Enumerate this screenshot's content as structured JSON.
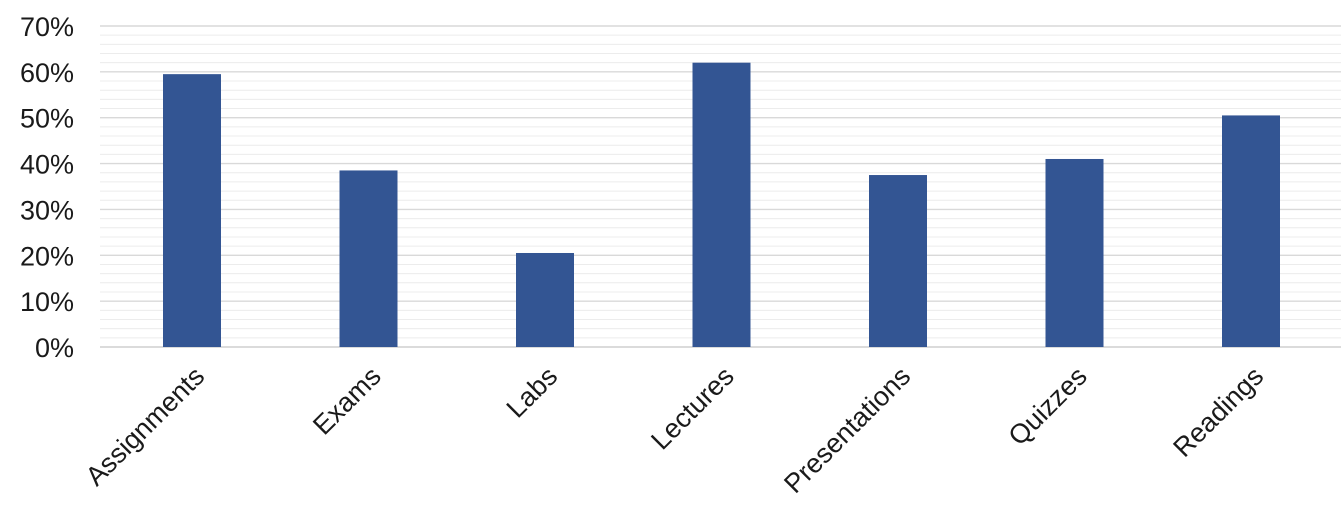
{
  "chart_data": {
    "type": "bar",
    "categories": [
      "Assignments",
      "Exams",
      "Labs",
      "Lectures",
      "Presentations",
      "Quizzes",
      "Readings"
    ],
    "series": [
      {
        "values": [
          59.5,
          38.5,
          20.5,
          62,
          37.5,
          41,
          50.5
        ]
      }
    ],
    "ylim": [
      0,
      70
    ],
    "y_ticks": [
      0,
      10,
      20,
      30,
      40,
      50,
      60,
      70
    ],
    "y_tick_labels": [
      "0%",
      "10%",
      "20%",
      "30%",
      "40%",
      "50%",
      "60%",
      "70%"
    ],
    "y_unit": "%",
    "xlabel": "",
    "ylabel": "",
    "title": "",
    "grid": true,
    "minor_grid": true,
    "legend": "none",
    "bar_color": "#335593",
    "x_tick_rotation_deg": -45
  }
}
